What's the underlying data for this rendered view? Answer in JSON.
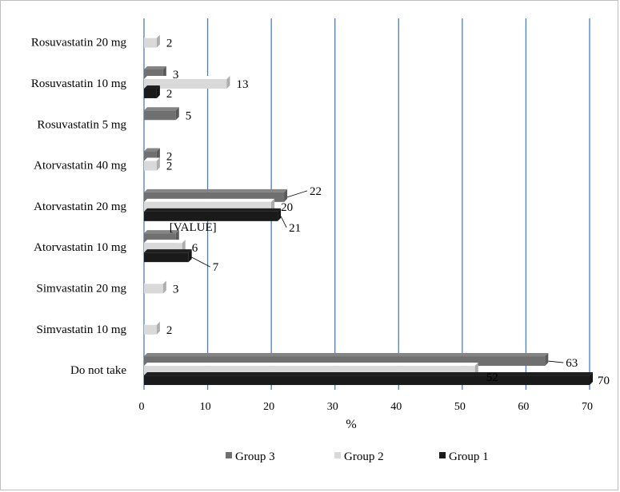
{
  "chart_data": {
    "type": "bar",
    "orientation": "horizontal",
    "style": "3d-clustered",
    "categories": [
      "Rosuvastatin 20 mg",
      "Rosuvastatin 10 mg",
      "Rosuvastatin 5 mg",
      "Atorvastatin 40 mg",
      "Atorvastatin 20 mg",
      "Atorvastatin 10 mg",
      "Simvastatin 20 mg",
      "Simvastatin 10 mg",
      "Do not take"
    ],
    "series": [
      {
        "name": "Group 3",
        "color": "#707070",
        "values": [
          null,
          3,
          5,
          2,
          22,
          5,
          null,
          null,
          63
        ],
        "labels": [
          "",
          "3",
          "5",
          "2",
          "22",
          "[VALUE]",
          "",
          "",
          "63"
        ]
      },
      {
        "name": "Group 2",
        "color": "#d9d9d9",
        "values": [
          2,
          13,
          null,
          2,
          20,
          6,
          3,
          2,
          52
        ],
        "labels": [
          "2",
          "13",
          "",
          "2",
          "20",
          "6",
          "3",
          "2",
          "52"
        ]
      },
      {
        "name": "Group 1",
        "color": "#1a1a1a",
        "values": [
          null,
          2,
          null,
          null,
          21,
          7,
          null,
          null,
          70
        ],
        "labels": [
          "",
          "2",
          "",
          "",
          "21",
          "7",
          "",
          "",
          "70"
        ]
      }
    ],
    "xlabel": "%",
    "ylabel": "",
    "xlim": [
      0,
      70
    ],
    "xticks": [
      0,
      10,
      20,
      30,
      40,
      50,
      60,
      70
    ],
    "grid": "vertical",
    "gridline_color": "#4a7ebb",
    "legend": "bottom"
  }
}
